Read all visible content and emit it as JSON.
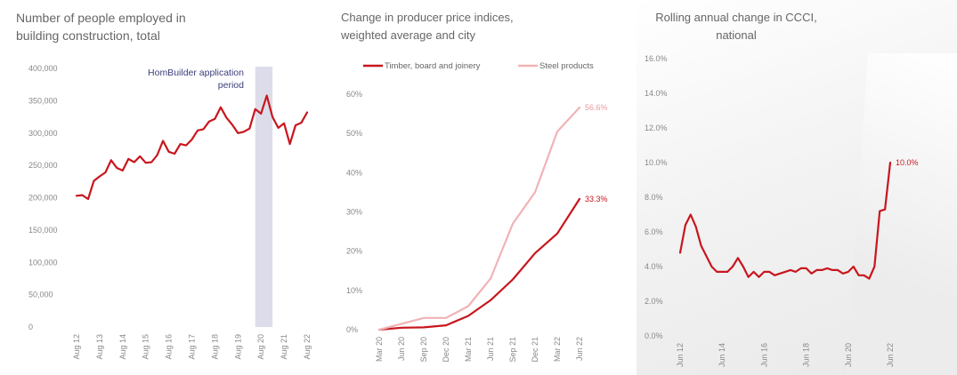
{
  "chart_data": [
    {
      "type": "line",
      "title": "Number of people employed in building construction, total",
      "title_lines": [
        "Number of people employed in",
        "building construction, total"
      ],
      "ylim": [
        0,
        400000
      ],
      "yticks": [
        "0",
        "50,000",
        "100,000",
        "150,000",
        "200,000",
        "250,000",
        "300,000",
        "350,000",
        "400,000"
      ],
      "xticks": [
        "Aug 12",
        "Aug 13",
        "Aug 14",
        "Aug 15",
        "Aug 16",
        "Aug 17",
        "Aug 18",
        "Aug 19",
        "Aug 20",
        "Aug 21",
        "Aug 22"
      ],
      "x_range": [
        0,
        10
      ],
      "annotation": "HomBuilder application period",
      "annotation_lines": [
        "HomBuilder application",
        "period"
      ],
      "shaded_x": [
        7.75,
        8.5
      ],
      "series": [
        {
          "color": "#c8161d",
          "x": [
            0,
            0.25,
            0.5,
            0.75,
            1,
            1.25,
            1.5,
            1.75,
            2,
            2.25,
            2.5,
            2.75,
            3,
            3.25,
            3.5,
            3.75,
            4,
            4.25,
            4.5,
            4.75,
            5,
            5.25,
            5.5,
            5.75,
            6,
            6.25,
            6.5,
            6.75,
            7,
            7.25,
            7.5,
            7.75,
            8,
            8.25,
            8.5,
            8.75,
            9,
            9.25,
            9.5,
            9.75,
            10
          ],
          "y": [
            203000,
            204000,
            198000,
            226000,
            233000,
            239000,
            258000,
            246000,
            242000,
            260000,
            255000,
            264000,
            254000,
            255000,
            266000,
            288000,
            271000,
            268000,
            283000,
            281000,
            290000,
            304000,
            306000,
            318000,
            322000,
            340000,
            324000,
            313000,
            300000,
            302000,
            307000,
            337000,
            330000,
            358000,
            325000,
            308000,
            315000,
            283000,
            312000,
            316000,
            332000
          ]
        }
      ]
    },
    {
      "type": "line",
      "title": "Change in producer price indices, weighted average and city",
      "title_lines": [
        "Change in producer price indices,",
        "weighted average and city"
      ],
      "ylim": [
        0,
        0.6
      ],
      "yticks": [
        "0%",
        "10%",
        "20%",
        "30%",
        "40%",
        "50%",
        "60%"
      ],
      "xticks": [
        "Mar 20",
        "Jun 20",
        "Sep 20",
        "Dec 20",
        "Mar 21",
        "Jun 21",
        "Sep 21",
        "Dec 21",
        "Mar 22",
        "Jun 22"
      ],
      "x_range": [
        0,
        9
      ],
      "legend_position": "top",
      "series": [
        {
          "name": "Timber, board and joinery",
          "color": "#c8161d",
          "end_label": "33.3%",
          "x": [
            0,
            1,
            2,
            3,
            4,
            5,
            6,
            7,
            8,
            9
          ],
          "y": [
            0,
            0.005,
            0.006,
            0.011,
            0.035,
            0.075,
            0.128,
            0.195,
            0.245,
            0.333
          ]
        },
        {
          "name": "Steel products",
          "color": "#f0b3b6",
          "end_label": "56.6%",
          "x": [
            0,
            1,
            2,
            3,
            4,
            5,
            6,
            7,
            8,
            9
          ],
          "y": [
            0,
            0.015,
            0.03,
            0.03,
            0.06,
            0.13,
            0.27,
            0.35,
            0.505,
            0.566
          ]
        }
      ]
    },
    {
      "type": "line",
      "title": "Rolling annual change in CCCI, national",
      "title_lines": [
        "Rolling annual change in CCCI,",
        "national"
      ],
      "ylim": [
        0,
        0.16
      ],
      "yticks": [
        "0.0%",
        "2.0%",
        "4.0%",
        "6.0%",
        "8.0%",
        "10.0%",
        "12.0%",
        "14.0%",
        "16.0%"
      ],
      "xticks": [
        "Jun 12",
        "Jun 14",
        "Jun 16",
        "Jun 18",
        "Jun 20",
        "Jun 22"
      ],
      "x_range": [
        0,
        40
      ],
      "series": [
        {
          "color": "#c8161d",
          "end_label": "10.0%",
          "x": [
            0,
            1,
            2,
            3,
            4,
            5,
            6,
            7,
            8,
            9,
            10,
            11,
            12,
            13,
            14,
            15,
            16,
            17,
            18,
            19,
            20,
            21,
            22,
            23,
            24,
            25,
            26,
            27,
            28,
            29,
            30,
            31,
            32,
            33,
            34,
            35,
            36,
            37,
            38,
            39,
            40
          ],
          "y": [
            0.048,
            0.064,
            0.07,
            0.063,
            0.052,
            0.046,
            0.04,
            0.037,
            0.037,
            0.037,
            0.04,
            0.045,
            0.04,
            0.034,
            0.037,
            0.034,
            0.037,
            0.037,
            0.035,
            0.036,
            0.037,
            0.038,
            0.037,
            0.039,
            0.039,
            0.036,
            0.038,
            0.038,
            0.039,
            0.038,
            0.038,
            0.036,
            0.037,
            0.04,
            0.035,
            0.035,
            0.033,
            0.04,
            0.072,
            0.073,
            0.1
          ]
        }
      ]
    }
  ]
}
